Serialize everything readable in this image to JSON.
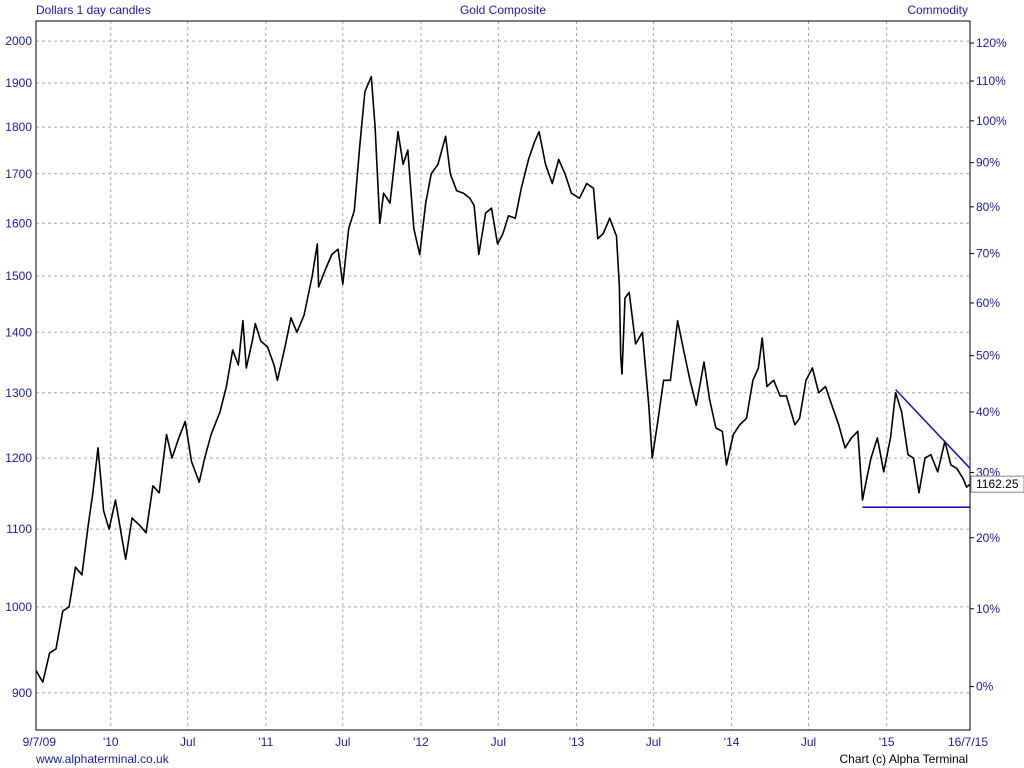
{
  "header": {
    "left": "Dollars 1 day candles",
    "center": "Gold Composite",
    "right": "Commodity"
  },
  "footer": {
    "left": "www.alphaterminal.co.uk",
    "right": "Chart (c) Alpha Terminal"
  },
  "colors": {
    "text": "#1a1ab3",
    "price": "#000000",
    "trendline": "#1a1ab3",
    "grid": "#aaaaaa"
  },
  "chart_data": {
    "type": "line",
    "title": "Gold Composite",
    "ylabel": "Dollars",
    "y_scale": "log",
    "ylim": [
      860,
      2050
    ],
    "y_ticks": [
      900,
      1000,
      1100,
      1200,
      1300,
      1400,
      1500,
      1600,
      1700,
      1800,
      1900,
      2000
    ],
    "y2_ticks": [
      "0%",
      "10%",
      "20%",
      "30%",
      "40%",
      "50%",
      "60%",
      "70%",
      "80%",
      "90%",
      "100%",
      "110%",
      "120%"
    ],
    "y2_base": 907,
    "x_range": [
      "2009-07-09",
      "2015-07-16"
    ],
    "x_ticks": [
      {
        "date": "2009-07-09",
        "label": "9/7/09"
      },
      {
        "date": "2010-01-01",
        "label": "'10"
      },
      {
        "date": "2010-07-01",
        "label": "Jul"
      },
      {
        "date": "2011-01-01",
        "label": "'11"
      },
      {
        "date": "2011-07-01",
        "label": "Jul"
      },
      {
        "date": "2012-01-01",
        "label": "'12"
      },
      {
        "date": "2012-07-01",
        "label": "Jul"
      },
      {
        "date": "2013-01-01",
        "label": "'13"
      },
      {
        "date": "2013-07-01",
        "label": "Jul"
      },
      {
        "date": "2014-01-01",
        "label": "'14"
      },
      {
        "date": "2014-07-01",
        "label": "Jul"
      },
      {
        "date": "2015-01-01",
        "label": "'15"
      },
      {
        "date": "2015-07-16",
        "label": "16/7/15"
      }
    ],
    "grid": true,
    "last_value": "1162.25",
    "series": [
      {
        "values": [
          [
            "2009-07-09",
            925
          ],
          [
            "2009-07-25",
            912
          ],
          [
            "2009-08-10",
            945
          ],
          [
            "2009-08-25",
            950
          ],
          [
            "2009-09-10",
            995
          ],
          [
            "2009-09-25",
            1000
          ],
          [
            "2009-10-10",
            1050
          ],
          [
            "2009-10-25",
            1040
          ],
          [
            "2009-11-10",
            1110
          ],
          [
            "2009-11-20",
            1150
          ],
          [
            "2009-12-02",
            1215
          ],
          [
            "2009-12-15",
            1125
          ],
          [
            "2009-12-28",
            1100
          ],
          [
            "2010-01-12",
            1140
          ],
          [
            "2010-01-28",
            1085
          ],
          [
            "2010-02-05",
            1060
          ],
          [
            "2010-02-20",
            1115
          ],
          [
            "2010-03-10",
            1105
          ],
          [
            "2010-03-25",
            1095
          ],
          [
            "2010-04-10",
            1160
          ],
          [
            "2010-04-25",
            1150
          ],
          [
            "2010-05-12",
            1235
          ],
          [
            "2010-05-25",
            1200
          ],
          [
            "2010-06-10",
            1230
          ],
          [
            "2010-06-25",
            1255
          ],
          [
            "2010-07-10",
            1195
          ],
          [
            "2010-07-28",
            1165
          ],
          [
            "2010-08-10",
            1200
          ],
          [
            "2010-08-25",
            1235
          ],
          [
            "2010-09-15",
            1270
          ],
          [
            "2010-09-30",
            1310
          ],
          [
            "2010-10-15",
            1370
          ],
          [
            "2010-10-28",
            1345
          ],
          [
            "2010-11-08",
            1420
          ],
          [
            "2010-11-16",
            1340
          ],
          [
            "2010-11-30",
            1385
          ],
          [
            "2010-12-07",
            1415
          ],
          [
            "2010-12-20",
            1385
          ],
          [
            "2011-01-05",
            1375
          ],
          [
            "2011-01-20",
            1345
          ],
          [
            "2011-01-28",
            1320
          ],
          [
            "2011-02-15",
            1375
          ],
          [
            "2011-03-01",
            1425
          ],
          [
            "2011-03-15",
            1400
          ],
          [
            "2011-04-01",
            1430
          ],
          [
            "2011-04-20",
            1500
          ],
          [
            "2011-05-02",
            1560
          ],
          [
            "2011-05-05",
            1480
          ],
          [
            "2011-05-20",
            1510
          ],
          [
            "2011-06-05",
            1540
          ],
          [
            "2011-06-20",
            1550
          ],
          [
            "2011-07-01",
            1485
          ],
          [
            "2011-07-15",
            1590
          ],
          [
            "2011-07-28",
            1625
          ],
          [
            "2011-08-10",
            1760
          ],
          [
            "2011-08-22",
            1880
          ],
          [
            "2011-09-06",
            1915
          ],
          [
            "2011-09-15",
            1800
          ],
          [
            "2011-09-26",
            1600
          ],
          [
            "2011-10-05",
            1660
          ],
          [
            "2011-10-20",
            1640
          ],
          [
            "2011-11-08",
            1790
          ],
          [
            "2011-11-20",
            1720
          ],
          [
            "2011-12-01",
            1750
          ],
          [
            "2011-12-15",
            1590
          ],
          [
            "2011-12-29",
            1540
          ],
          [
            "2012-01-12",
            1640
          ],
          [
            "2012-01-25",
            1700
          ],
          [
            "2012-02-10",
            1720
          ],
          [
            "2012-02-28",
            1780
          ],
          [
            "2012-03-10",
            1700
          ],
          [
            "2012-03-25",
            1665
          ],
          [
            "2012-04-10",
            1660
          ],
          [
            "2012-04-25",
            1650
          ],
          [
            "2012-05-05",
            1635
          ],
          [
            "2012-05-16",
            1540
          ],
          [
            "2012-06-01",
            1620
          ],
          [
            "2012-06-15",
            1630
          ],
          [
            "2012-06-29",
            1560
          ],
          [
            "2012-07-12",
            1580
          ],
          [
            "2012-07-25",
            1615
          ],
          [
            "2012-08-10",
            1610
          ],
          [
            "2012-08-24",
            1670
          ],
          [
            "2012-09-10",
            1730
          ],
          [
            "2012-09-25",
            1770
          ],
          [
            "2012-10-05",
            1790
          ],
          [
            "2012-10-20",
            1720
          ],
          [
            "2012-11-05",
            1680
          ],
          [
            "2012-11-20",
            1730
          ],
          [
            "2012-12-05",
            1700
          ],
          [
            "2012-12-20",
            1660
          ],
          [
            "2013-01-08",
            1650
          ],
          [
            "2013-01-25",
            1680
          ],
          [
            "2013-02-10",
            1670
          ],
          [
            "2013-02-20",
            1570
          ],
          [
            "2013-03-05",
            1580
          ],
          [
            "2013-03-20",
            1610
          ],
          [
            "2013-04-05",
            1575
          ],
          [
            "2013-04-12",
            1480
          ],
          [
            "2013-04-15",
            1360
          ],
          [
            "2013-04-18",
            1330
          ],
          [
            "2013-04-25",
            1460
          ],
          [
            "2013-05-05",
            1470
          ],
          [
            "2013-05-20",
            1380
          ],
          [
            "2013-06-05",
            1400
          ],
          [
            "2013-06-20",
            1280
          ],
          [
            "2013-06-28",
            1200
          ],
          [
            "2013-07-10",
            1250
          ],
          [
            "2013-07-25",
            1320
          ],
          [
            "2013-08-10",
            1320
          ],
          [
            "2013-08-27",
            1420
          ],
          [
            "2013-09-10",
            1370
          ],
          [
            "2013-09-25",
            1320
          ],
          [
            "2013-10-10",
            1280
          ],
          [
            "2013-10-28",
            1350
          ],
          [
            "2013-11-10",
            1290
          ],
          [
            "2013-11-25",
            1245
          ],
          [
            "2013-12-10",
            1240
          ],
          [
            "2013-12-20",
            1190
          ],
          [
            "2014-01-05",
            1235
          ],
          [
            "2014-01-20",
            1250
          ],
          [
            "2014-02-05",
            1260
          ],
          [
            "2014-02-20",
            1320
          ],
          [
            "2014-03-05",
            1340
          ],
          [
            "2014-03-14",
            1390
          ],
          [
            "2014-03-25",
            1310
          ],
          [
            "2014-04-10",
            1320
          ],
          [
            "2014-04-25",
            1295
          ],
          [
            "2014-05-10",
            1295
          ],
          [
            "2014-05-30",
            1250
          ],
          [
            "2014-06-10",
            1260
          ],
          [
            "2014-06-25",
            1320
          ],
          [
            "2014-07-10",
            1340
          ],
          [
            "2014-07-25",
            1300
          ],
          [
            "2014-08-10",
            1310
          ],
          [
            "2014-08-25",
            1280
          ],
          [
            "2014-09-10",
            1250
          ],
          [
            "2014-09-25",
            1215
          ],
          [
            "2014-10-10",
            1230
          ],
          [
            "2014-10-25",
            1240
          ],
          [
            "2014-11-05",
            1140
          ],
          [
            "2014-11-15",
            1170
          ],
          [
            "2014-11-25",
            1200
          ],
          [
            "2014-12-10",
            1230
          ],
          [
            "2014-12-25",
            1180
          ],
          [
            "2015-01-10",
            1230
          ],
          [
            "2015-01-22",
            1300
          ],
          [
            "2015-02-05",
            1270
          ],
          [
            "2015-02-20",
            1205
          ],
          [
            "2015-03-05",
            1200
          ],
          [
            "2015-03-18",
            1150
          ],
          [
            "2015-04-01",
            1200
          ],
          [
            "2015-04-15",
            1205
          ],
          [
            "2015-05-01",
            1180
          ],
          [
            "2015-05-18",
            1225
          ],
          [
            "2015-06-01",
            1190
          ],
          [
            "2015-06-15",
            1185
          ],
          [
            "2015-06-30",
            1170
          ],
          [
            "2015-07-08",
            1158
          ],
          [
            "2015-07-16",
            1162.25
          ]
        ]
      }
    ],
    "trendlines": [
      {
        "from": [
          "2015-01-22",
          1305
        ],
        "to": [
          "2015-07-16",
          1185
        ]
      },
      {
        "from": [
          "2014-11-05",
          1130
        ],
        "to": [
          "2015-07-16",
          1130
        ]
      }
    ]
  }
}
